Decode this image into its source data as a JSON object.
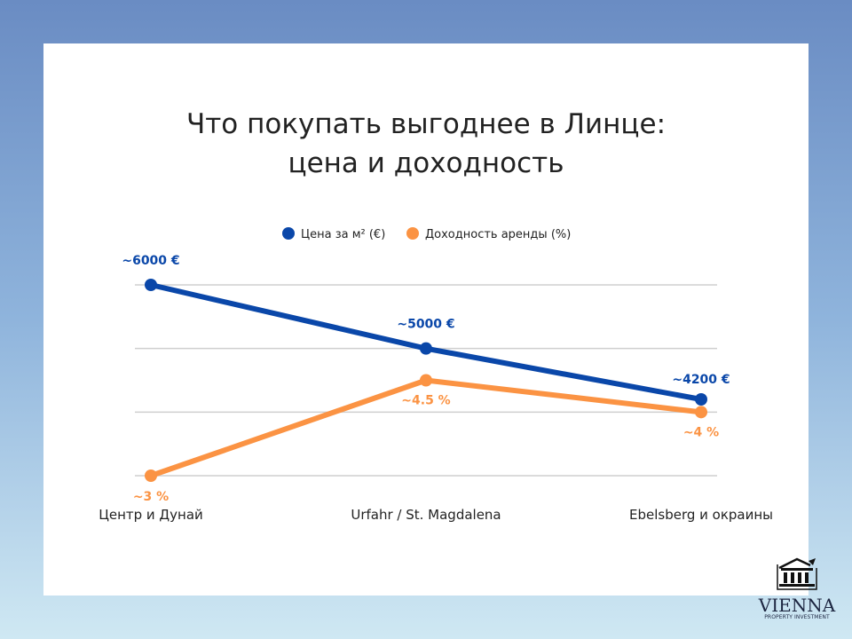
{
  "chart_data": {
    "type": "line",
    "title": "Что покупать выгоднее в Линце:\nцена и доходность",
    "title_lines": [
      "Что покупать выгоднее в Линце:",
      "цена и доходность"
    ],
    "categories": [
      "Центр и Дунай",
      "Urfahr / St. Magdalena",
      "Ebelsberg и окраины"
    ],
    "series": [
      {
        "name": "Цена за м² (€)",
        "values": [
          6000,
          5000,
          4200
        ],
        "labels": [
          "~6000 €",
          "~5000 €",
          "~4200 €"
        ],
        "color": "#0a47a9",
        "ylim": [
          3000,
          6000
        ]
      },
      {
        "name": "Доходность аренды (%)",
        "values": [
          3,
          4.5,
          4
        ],
        "labels": [
          "~3 %",
          "~4.5 %",
          "~4 %"
        ],
        "color": "#fb9343",
        "ylim": [
          3,
          6
        ]
      }
    ],
    "grid": true,
    "legend": "top-center",
    "xlabel": "",
    "ylabel": ""
  },
  "logo": {
    "name": "VIENNA",
    "sub": "PROPERTY INVESTMENT"
  }
}
